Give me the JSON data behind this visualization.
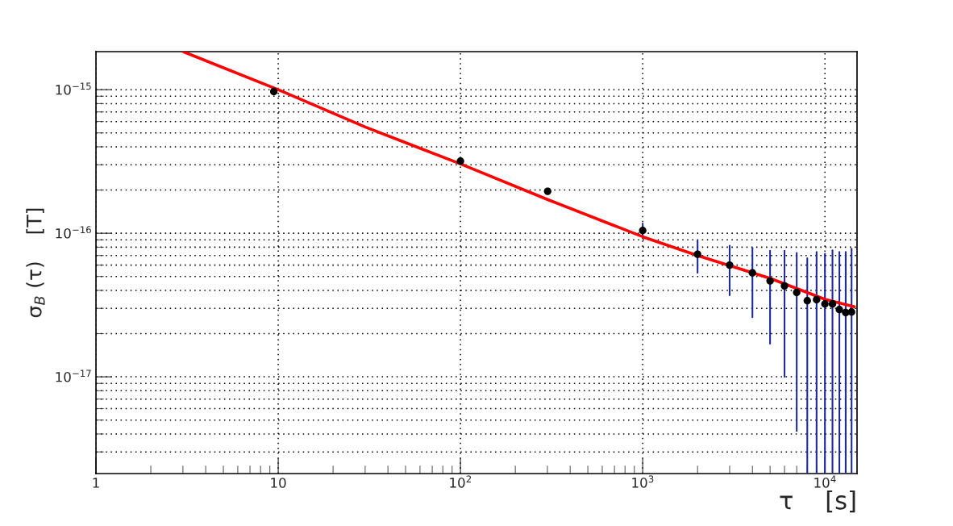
{
  "chart_data": {
    "type": "scatter",
    "xlabel": "τ    [s]",
    "ylabel": "σ$_{B}$ (τ)    [T]",
    "log": "xy",
    "grid": true,
    "xlim": [
      1,
      15000
    ],
    "ylim": [
      2.12e-18,
      1.84e-15
    ],
    "xticks": [
      1,
      10,
      {
        "value": 100,
        "label": "10$^{2}$"
      },
      {
        "value": 1000,
        "label": "10$^{3}$"
      },
      {
        "value": 10000,
        "label": "10$^{4}$"
      }
    ],
    "yticks": [
      {
        "value": 1e-17,
        "label": "10$^{−17}$"
      },
      {
        "value": 1e-16,
        "label": "10$^{−16}$"
      },
      {
        "value": 1e-15,
        "label": "10$^{−15}$"
      }
    ],
    "series": [
      {
        "color": "#000000",
        "marker": "circle",
        "x": [
          9.46,
          100,
          301,
          1000,
          2000,
          3000,
          4000,
          5000,
          6000,
          7000,
          8000,
          9000,
          10000,
          11000,
          12000,
          13000,
          14000
        ],
        "values": [
          9.7e-16,
          3.18e-16,
          1.96e-16,
          1.045e-16,
          7.14e-17,
          6e-17,
          5.3e-17,
          4.65e-17,
          4.3e-17,
          3.87e-17,
          3.39e-17,
          3.45e-17,
          3.22e-17,
          3.22e-17,
          2.94e-17,
          2.8e-17,
          2.83e-17
        ],
        "errors": [
          null,
          null,
          null,
          [
            9.2e-17,
            1.17e-16
          ],
          [
            5.3e-17,
            8.87e-17
          ],
          [
            3.7e-17,
            8.2e-17
          ],
          [
            2.6e-17,
            7.9e-17
          ],
          [
            1.7e-17,
            7.55e-17
          ],
          [
            1e-17,
            7.55e-17
          ],
          [
            4.2e-18,
            7.3e-17
          ],
          [
            2.12e-18,
            6.7e-17
          ],
          [
            2.12e-18,
            7.4e-17
          ],
          [
            2.12e-18,
            7.2e-17
          ],
          [
            2.12e-18,
            7.6e-17
          ],
          [
            2.12e-18,
            7.4e-17
          ],
          [
            2.12e-18,
            7.4e-17
          ],
          [
            2.12e-18,
            7.8e-17
          ]
        ]
      },
      {
        "type": "line",
        "color": "#ff0000",
        "marker": "none",
        "x": [
          3.01,
          10,
          30,
          100,
          300,
          1000,
          2000,
          5000,
          10000,
          14500
        ],
        "values": [
          1.84e-15,
          1e-15,
          5.5e-16,
          3.04e-16,
          1.72e-16,
          9.46e-17,
          7e-17,
          4.85e-17,
          3.47e-17,
          3.08e-17
        ]
      }
    ]
  }
}
